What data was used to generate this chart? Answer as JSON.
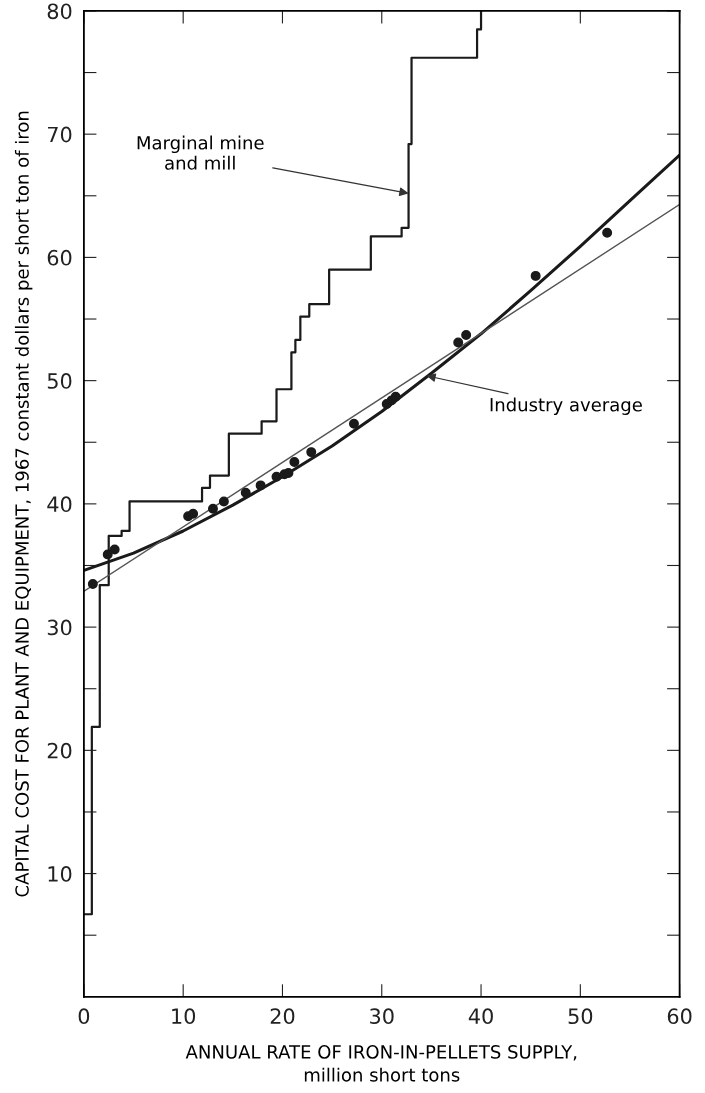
{
  "chart_data": {
    "type": "line",
    "xlabel": "ANNUAL RATE OF IRON-IN-PELLETS SUPPLY,\nmillion short tons",
    "ylabel": "CAPITAL COST FOR PLANT AND EQUIPMENT, 1967 constant dollars per short ton of iron",
    "xlim": [
      0,
      60
    ],
    "ylim": [
      0,
      80
    ],
    "xticks": [
      0,
      10,
      20,
      30,
      40,
      50,
      60
    ],
    "yticks": [
      {
        "value": 5,
        "label": null
      },
      10,
      {
        "value": 15,
        "label": null
      },
      20,
      {
        "value": 25,
        "label": null
      },
      30,
      {
        "value": 35,
        "label": null
      },
      40,
      {
        "value": 45,
        "label": null
      },
      50,
      {
        "value": 55,
        "label": null
      },
      60,
      {
        "value": 65,
        "label": null
      },
      70,
      {
        "value": 75,
        "label": null
      },
      80
    ],
    "grid": false,
    "legend": false,
    "series": [
      {
        "type": "step",
        "color": "#1a1a1a",
        "x": [
          0,
          0.8,
          1.6,
          2.5,
          3.8,
          4.6,
          11.9,
          12.7,
          14.6,
          17.9,
          19.4,
          20.9,
          21.3,
          21.8,
          22.7,
          24.7,
          28.9,
          32.0,
          32.7,
          33.0,
          39.6,
          40.0
        ],
        "values": [
          6.7,
          21.9,
          33.4,
          37.4,
          37.8,
          40.2,
          41.3,
          42.3,
          45.7,
          46.7,
          49.3,
          52.3,
          53.3,
          55.2,
          56.2,
          59.0,
          61.7,
          62.4,
          69.2,
          76.2,
          78.5,
          80
        ]
      },
      {
        "color": "#1a1a1a",
        "x": [
          0,
          5,
          10,
          15,
          20,
          25,
          30,
          35,
          40,
          45,
          50,
          55,
          60
        ],
        "values": [
          34.6,
          36.0,
          37.8,
          39.9,
          42.2,
          44.7,
          47.5,
          50.6,
          53.8,
          57.3,
          60.9,
          64.6,
          68.3
        ]
      },
      {
        "color": "#555555",
        "x": [
          0,
          60
        ],
        "values": [
          32.9,
          64.3
        ]
      },
      {
        "type": "scatter",
        "color": "#1a1a1a",
        "marker": "circle",
        "x": [
          0.9,
          2.4,
          3.1,
          10.5,
          11.0,
          13.0,
          14.1,
          16.3,
          17.8,
          19.4,
          20.2,
          20.6,
          21.2,
          22.9,
          27.2,
          30.5,
          31.0,
          31.4,
          37.7,
          38.5,
          45.5,
          52.7
        ],
        "values": [
          33.5,
          35.9,
          36.3,
          39.0,
          39.2,
          39.6,
          40.2,
          40.9,
          41.5,
          42.2,
          42.4,
          42.5,
          43.4,
          44.2,
          46.5,
          48.1,
          48.4,
          48.7,
          53.1,
          53.7,
          58.5,
          62.0
        ]
      }
    ],
    "annotations": [
      {
        "text": "Marginal mine\nand mill",
        "x": 32.7,
        "y": 65.2
      },
      {
        "text": "Industry average",
        "x": 34.5,
        "y": 50.4
      }
    ]
  }
}
